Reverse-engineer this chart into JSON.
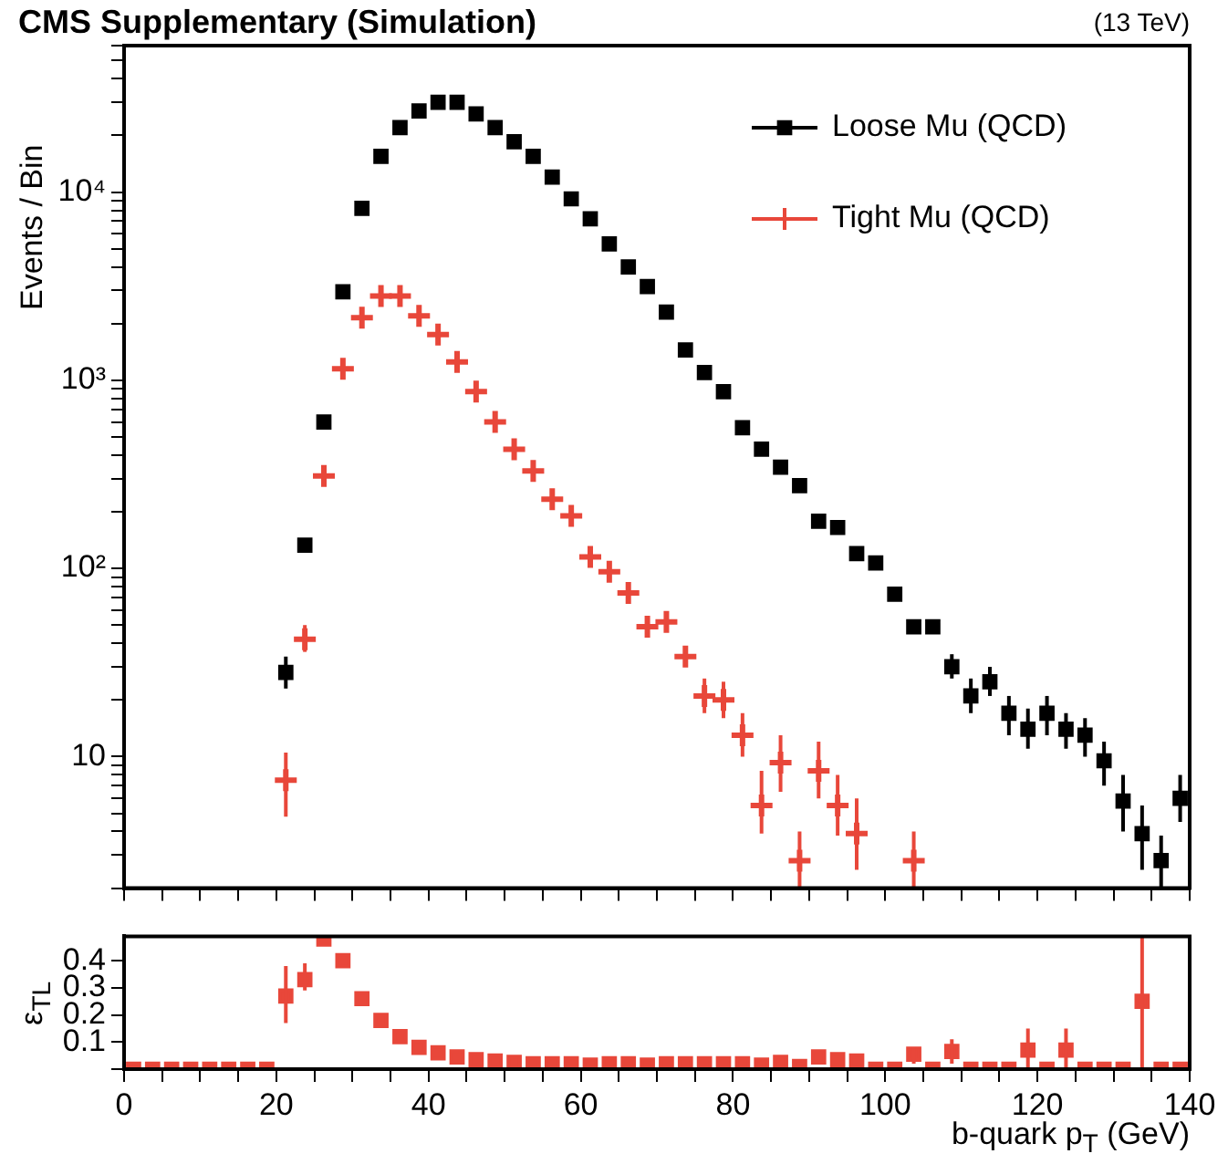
{
  "chart_data": [
    {
      "type": "scatter",
      "title": "CMS Supplementary (Simulation)",
      "subtitle": "(13 TeV)",
      "ylabel": "Events / Bin",
      "log": true,
      "legend": "top right",
      "grid": false,
      "tick_labels": "y",
      "xlim": [
        0,
        140
      ],
      "xticks": [
        0,
        {
          "value": 5,
          "label": null
        },
        {
          "value": 10,
          "label": null
        },
        {
          "value": 15,
          "label": null
        },
        20,
        {
          "value": 25,
          "label": null
        },
        {
          "value": 30,
          "label": null
        },
        {
          "value": 35,
          "label": null
        },
        40,
        {
          "value": 45,
          "label": null
        },
        {
          "value": 50,
          "label": null
        },
        {
          "value": 55,
          "label": null
        },
        60,
        {
          "value": 65,
          "label": null
        },
        {
          "value": 70,
          "label": null
        },
        {
          "value": 75,
          "label": null
        },
        80,
        {
          "value": 85,
          "label": null
        },
        {
          "value": 90,
          "label": null
        },
        {
          "value": 95,
          "label": null
        },
        100,
        {
          "value": 105,
          "label": null
        },
        {
          "value": 110,
          "label": null
        },
        {
          "value": 115,
          "label": null
        },
        120,
        {
          "value": 125,
          "label": null
        },
        {
          "value": 130,
          "label": null
        },
        {
          "value": 135,
          "label": null
        },
        140
      ],
      "ylim": [
        2,
        60000
      ],
      "yticks": [
        {
          "value": 2,
          "label": null
        },
        {
          "value": 3,
          "label": null
        },
        {
          "value": 4,
          "label": null
        },
        {
          "value": 5,
          "label": null
        },
        {
          "value": 6,
          "label": null
        },
        {
          "value": 7,
          "label": null
        },
        {
          "value": 8,
          "label": null
        },
        {
          "value": 9,
          "label": null
        },
        10,
        {
          "value": 20,
          "label": null
        },
        {
          "value": 30,
          "label": null
        },
        {
          "value": 40,
          "label": null
        },
        {
          "value": 50,
          "label": null
        },
        {
          "value": 60,
          "label": null
        },
        {
          "value": 70,
          "label": null
        },
        {
          "value": 80,
          "label": null
        },
        {
          "value": 90,
          "label": null
        },
        {
          "value": 100,
          "label": "10²"
        },
        {
          "value": 200,
          "label": null
        },
        {
          "value": 300,
          "label": null
        },
        {
          "value": 400,
          "label": null
        },
        {
          "value": 500,
          "label": null
        },
        {
          "value": 600,
          "label": null
        },
        {
          "value": 700,
          "label": null
        },
        {
          "value": 800,
          "label": null
        },
        {
          "value": 900,
          "label": null
        },
        {
          "value": 1000,
          "label": "10³"
        },
        {
          "value": 2000,
          "label": null
        },
        {
          "value": 3000,
          "label": null
        },
        {
          "value": 4000,
          "label": null
        },
        {
          "value": 5000,
          "label": null
        },
        {
          "value": 6000,
          "label": null
        },
        {
          "value": 7000,
          "label": null
        },
        {
          "value": 8000,
          "label": null
        },
        {
          "value": 9000,
          "label": null
        },
        {
          "value": 10000,
          "label": "10⁴"
        },
        {
          "value": 20000,
          "label": null
        },
        {
          "value": 30000,
          "label": null
        },
        {
          "value": 40000,
          "label": null
        },
        {
          "value": 50000,
          "label": null
        },
        {
          "value": 60000,
          "label": null
        }
      ],
      "x": [
        21.25,
        23.75,
        26.25,
        28.75,
        31.25,
        33.75,
        36.25,
        38.75,
        41.25,
        43.75,
        46.25,
        48.75,
        51.25,
        53.75,
        56.25,
        58.75,
        61.25,
        63.75,
        66.25,
        68.75,
        71.25,
        73.75,
        76.25,
        78.75,
        81.25,
        83.75,
        86.25,
        88.75,
        91.25,
        93.75,
        96.25,
        98.75,
        101.25,
        103.75,
        106.25,
        108.75,
        111.25,
        113.75,
        116.25,
        118.75,
        121.25,
        123.75,
        126.25,
        128.75,
        131.25,
        133.75,
        136.25,
        138.75
      ],
      "series": [
        {
          "name": "Loose Mu (QCD)",
          "color": "#000000",
          "marker": "square",
          "values": [
            28,
            133,
            600,
            2950,
            8200,
            15500,
            22000,
            27000,
            30000,
            30000,
            26000,
            22000,
            18500,
            15500,
            12000,
            9200,
            7200,
            5300,
            4000,
            3150,
            2300,
            1450,
            1100,
            870,
            560,
            430,
            345,
            275,
            178,
            165,
            120,
            107,
            73,
            49,
            49,
            30,
            21,
            25,
            17,
            14,
            17,
            14,
            13,
            9.5,
            5.8,
            3.9,
            2.8,
            6
          ],
          "errors": [
            [
              23,
              34
            ],
            null,
            null,
            null,
            null,
            null,
            null,
            null,
            null,
            null,
            null,
            null,
            null,
            null,
            null,
            null,
            null,
            null,
            null,
            null,
            null,
            null,
            null,
            null,
            null,
            null,
            null,
            null,
            null,
            null,
            null,
            null,
            null,
            null,
            null,
            [
              26,
              35
            ],
            [
              17,
              26
            ],
            [
              21,
              30
            ],
            [
              13,
              21
            ],
            [
              11,
              18
            ],
            [
              13,
              21
            ],
            [
              11,
              17
            ],
            [
              10,
              16
            ],
            [
              7,
              12
            ],
            [
              4,
              8
            ],
            [
              2.5,
              5.5
            ],
            [
              2,
              3.8
            ],
            [
              4.5,
              8
            ]
          ]
        },
        {
          "name": "Tight Mu (QCD)",
          "color": "#e8473a",
          "marker": "cross",
          "values": [
            7.5,
            42,
            310,
            1150,
            2150,
            2800,
            2800,
            2200,
            1750,
            1250,
            870,
            600,
            430,
            330,
            233,
            190,
            115,
            96,
            74,
            49,
            52,
            34,
            21,
            20,
            13,
            5.5,
            9.3,
            2.8,
            8.4,
            5.5,
            3.9,
            null,
            null,
            2.8,
            null,
            null,
            null,
            null,
            null,
            null,
            null,
            null,
            null,
            null,
            null,
            null,
            null,
            null
          ],
          "errors": [
            [
              4.8,
              10.5
            ],
            [
              36,
              50
            ],
            null,
            null,
            null,
            null,
            null,
            null,
            null,
            null,
            null,
            null,
            null,
            null,
            null,
            null,
            null,
            null,
            null,
            null,
            null,
            null,
            [
              17,
              26
            ],
            [
              16,
              25
            ],
            [
              10,
              17
            ],
            [
              3.9,
              8.4
            ],
            [
              6.5,
              13
            ],
            [
              2,
              4
            ],
            [
              6,
              12
            ],
            [
              3.8,
              8
            ],
            [
              2.5,
              6
            ],
            null,
            null,
            [
              2,
              4
            ],
            null,
            null,
            null,
            null,
            null,
            null,
            null,
            null,
            null,
            null,
            null,
            null,
            null,
            null
          ]
        }
      ]
    },
    {
      "type": "scatter",
      "xlabel": "b-quark p$_{T}$ (GeV)",
      "ylabel": "ε$_{TL}$",
      "grid": false,
      "xlim": [
        0,
        140
      ],
      "xticks": [
        0,
        {
          "value": 5,
          "label": null
        },
        {
          "value": 10,
          "label": null
        },
        {
          "value": 15,
          "label": null
        },
        20,
        {
          "value": 25,
          "label": null
        },
        {
          "value": 30,
          "label": null
        },
        {
          "value": 35,
          "label": null
        },
        40,
        {
          "value": 45,
          "label": null
        },
        {
          "value": 50,
          "label": null
        },
        {
          "value": 55,
          "label": null
        },
        60,
        {
          "value": 65,
          "label": null
        },
        {
          "value": 70,
          "label": null
        },
        {
          "value": 75,
          "label": null
        },
        80,
        {
          "value": 85,
          "label": null
        },
        {
          "value": 90,
          "label": null
        },
        {
          "value": 95,
          "label": null
        },
        100,
        {
          "value": 105,
          "label": null
        },
        {
          "value": 110,
          "label": null
        },
        {
          "value": 115,
          "label": null
        },
        120,
        {
          "value": 125,
          "label": null
        },
        {
          "value": 130,
          "label": null
        },
        {
          "value": 135,
          "label": null
        },
        140
      ],
      "ylim": [
        0,
        0.49
      ],
      "yticks": [
        {
          "value": 0,
          "label": null
        },
        0.1,
        0.2,
        0.3,
        0.4
      ],
      "x": [
        1.25,
        3.75,
        6.25,
        8.75,
        11.25,
        13.75,
        16.25,
        18.75,
        21.25,
        23.75,
        26.25,
        28.75,
        31.25,
        33.75,
        36.25,
        38.75,
        41.25,
        43.75,
        46.25,
        48.75,
        51.25,
        53.75,
        56.25,
        58.75,
        61.25,
        63.75,
        66.25,
        68.75,
        71.25,
        73.75,
        76.25,
        78.75,
        81.25,
        83.75,
        86.25,
        88.75,
        91.25,
        93.75,
        96.25,
        98.75,
        101.25,
        103.75,
        106.25,
        108.75,
        111.25,
        113.75,
        116.25,
        118.75,
        121.25,
        123.75,
        126.25,
        128.75,
        131.25,
        133.75,
        136.25,
        138.75
      ],
      "series": [
        {
          "color": "#e8473a",
          "marker": "square",
          "values": [
            0,
            0,
            0,
            0,
            0,
            0,
            0,
            0,
            0.27,
            0.33,
            0.48,
            0.4,
            0.26,
            0.18,
            0.12,
            0.08,
            0.06,
            0.045,
            0.035,
            0.03,
            0.025,
            0.02,
            0.02,
            0.02,
            0.015,
            0.02,
            0.02,
            0.015,
            0.02,
            0.02,
            0.02,
            0.02,
            0.02,
            0.015,
            0.025,
            0.01,
            0.045,
            0.035,
            0.03,
            0,
            0,
            0.055,
            0,
            0.065,
            0,
            0,
            0,
            0.07,
            0,
            0.07,
            0,
            0,
            0,
            0.25,
            0,
            0
          ],
          "errors": [
            null,
            null,
            null,
            null,
            null,
            null,
            null,
            null,
            [
              0.17,
              0.38
            ],
            [
              0.29,
              0.39
            ],
            null,
            null,
            null,
            null,
            null,
            null,
            null,
            null,
            null,
            null,
            null,
            null,
            null,
            null,
            null,
            null,
            null,
            null,
            null,
            null,
            null,
            null,
            null,
            null,
            null,
            null,
            null,
            null,
            null,
            null,
            null,
            [
              0.02,
              0.08
            ],
            null,
            [
              0.02,
              0.11
            ],
            null,
            null,
            null,
            [
              0,
              0.15
            ],
            null,
            [
              0,
              0.15
            ],
            null,
            null,
            null,
            [
              0,
              0.49
            ],
            null,
            null
          ]
        }
      ]
    }
  ]
}
